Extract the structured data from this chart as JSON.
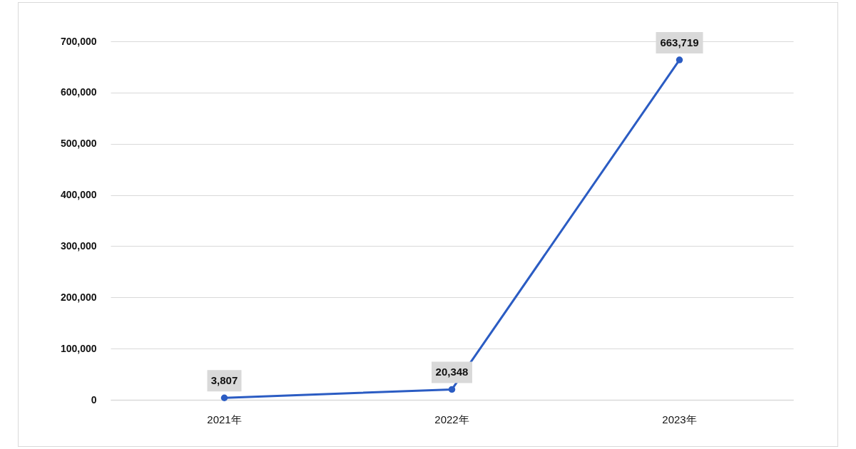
{
  "chart_data": {
    "type": "line",
    "categories": [
      "2021年",
      "2022年",
      "2023年"
    ],
    "values": [
      3807,
      20348,
      663719
    ],
    "value_labels": [
      "3,807",
      "20,348",
      "663,719"
    ],
    "color": "#2b5cc3",
    "ylim": [
      0,
      700000
    ],
    "yticks": [
      0,
      {
        "value": 100000,
        "label": "100,000"
      },
      {
        "value": 200000,
        "label": "200,000"
      },
      {
        "value": 300000,
        "label": "300,000"
      },
      {
        "value": 400000,
        "label": "400,000"
      },
      {
        "value": 500000,
        "label": "500,000"
      },
      {
        "value": 600000,
        "label": "600,000"
      },
      {
        "value": 700000,
        "label": "700,000"
      }
    ],
    "grid": "y",
    "marker": "circle",
    "line_style": "solid"
  }
}
